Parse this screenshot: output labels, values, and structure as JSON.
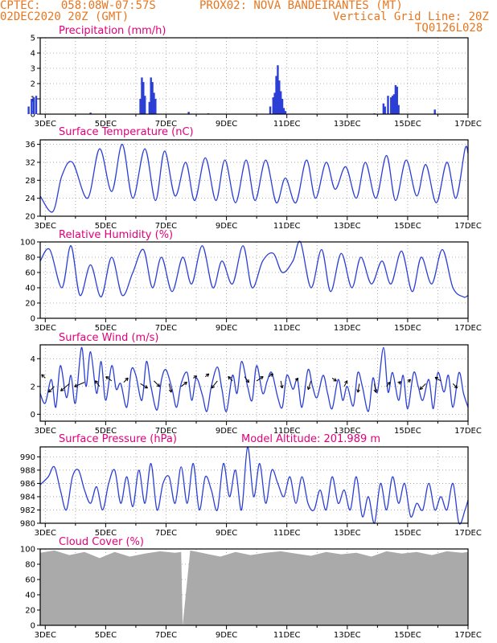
{
  "header": {
    "line1_left": "CPTEC:   058:08W-07:57S",
    "line1_right": "PROX02: NOVA BANDEIRANTES (MT)",
    "line2_left": "02DEC2020 20Z (GMT)",
    "line2_right": "Vertical Grid Line: 20Z",
    "line3_right": "TQ0126L028"
  },
  "colors": {
    "series": "#2b3fd6",
    "title": "#e0007a",
    "header": "#e8761e",
    "cloud": "#aaaaaa"
  },
  "x_axis": {
    "ticks": [
      "3DEC",
      "5DEC",
      "7DEC",
      "9DEC",
      "11DEC",
      "13DEC",
      "15DEC",
      "17DEC"
    ],
    "range_days": [
      2.833,
      17.0
    ]
  },
  "chart_data": [
    {
      "type": "bar",
      "title": "Precipitation (mm/h)",
      "ylim": [
        0,
        5
      ],
      "yticks": [
        "0",
        "1",
        "2",
        "3",
        "4",
        "5"
      ],
      "x": [
        2.45,
        2.55,
        2.62,
        2.7,
        4.5,
        6.15,
        6.2,
        6.25,
        6.3,
        6.45,
        6.5,
        6.55,
        6.6,
        6.65,
        7.75,
        8.4,
        10.45,
        10.55,
        10.6,
        10.65,
        10.7,
        10.75,
        10.8,
        10.85,
        10.9,
        10.95,
        13.9,
        14.2,
        14.25,
        14.35,
        14.45,
        14.5,
        14.55,
        14.6,
        14.65,
        14.7,
        15.9
      ],
      "values": [
        0.5,
        1.0,
        1.1,
        1.2,
        0.1,
        1.0,
        2.4,
        2.1,
        1.2,
        0.8,
        2.4,
        2.1,
        1.4,
        1.0,
        0.15,
        0.05,
        0.5,
        1.1,
        1.4,
        2.5,
        3.2,
        2.2,
        1.5,
        1.0,
        0.4,
        0.2,
        0.05,
        0.7,
        0.5,
        1.2,
        1.1,
        1.2,
        1.3,
        1.9,
        1.8,
        0.6,
        0.3
      ]
    },
    {
      "type": "line",
      "title": "Surface Temperature (nC)",
      "ylim": [
        20,
        37
      ],
      "yticks": [
        "20",
        "24",
        "28",
        "32",
        "36"
      ],
      "x": [
        2.833,
        3.25,
        3.55,
        3.9,
        4.4,
        4.8,
        5.2,
        5.55,
        5.9,
        6.3,
        6.65,
        6.95,
        7.3,
        7.65,
        7.95,
        8.3,
        8.65,
        8.95,
        9.3,
        9.65,
        9.95,
        10.3,
        10.65,
        10.95,
        11.3,
        11.65,
        11.95,
        12.3,
        12.6,
        12.95,
        13.3,
        13.6,
        13.95,
        14.3,
        14.6,
        14.95,
        15.3,
        15.6,
        15.95,
        16.3,
        16.6,
        16.9,
        17.0
      ],
      "values": [
        24.5,
        21,
        29,
        32,
        24,
        35,
        25.5,
        36,
        24,
        35,
        23.5,
        34.5,
        24.5,
        32,
        23.5,
        33,
        23.5,
        32.5,
        23,
        32.5,
        23.5,
        32.5,
        23,
        28.5,
        23,
        32.5,
        24,
        32,
        26,
        31,
        24,
        32,
        24,
        33.5,
        23.5,
        32.5,
        24.5,
        31.5,
        23,
        32,
        24,
        35,
        34
      ]
    },
    {
      "type": "line",
      "title": "Relative Humidity (%)",
      "ylim": [
        0,
        100
      ],
      "yticks": [
        "0",
        "20",
        "40",
        "60",
        "80",
        "100"
      ],
      "x": [
        2.833,
        3.15,
        3.55,
        3.85,
        4.15,
        4.5,
        4.85,
        5.2,
        5.55,
        5.9,
        6.25,
        6.55,
        6.85,
        7.2,
        7.55,
        7.85,
        8.2,
        8.55,
        8.85,
        9.2,
        9.55,
        9.85,
        10.2,
        10.55,
        10.85,
        11.2,
        11.45,
        11.8,
        12.15,
        12.45,
        12.8,
        13.15,
        13.45,
        13.8,
        14.15,
        14.45,
        14.8,
        15.15,
        15.45,
        15.8,
        16.15,
        16.5,
        16.85,
        17.0
      ],
      "values": [
        75,
        90,
        40,
        95,
        30,
        70,
        28,
        80,
        30,
        60,
        90,
        40,
        80,
        35,
        80,
        45,
        95,
        40,
        75,
        45,
        95,
        40,
        75,
        85,
        60,
        75,
        100,
        40,
        90,
        35,
        85,
        40,
        80,
        45,
        75,
        45,
        88,
        35,
        80,
        45,
        90,
        40,
        28,
        30
      ]
    },
    {
      "type": "line",
      "title": "Surface Wind (m/s)",
      "ylim": [
        -0.5,
        5
      ],
      "yticks": [
        "0",
        "2",
        "4"
      ],
      "x": [
        2.833,
        3.0,
        3.2,
        3.35,
        3.5,
        3.7,
        3.85,
        4.0,
        4.2,
        4.35,
        4.5,
        4.7,
        4.85,
        5.0,
        5.2,
        5.35,
        5.5,
        5.7,
        5.85,
        6.0,
        6.2,
        6.35,
        6.5,
        6.7,
        6.85,
        7.0,
        7.2,
        7.35,
        7.5,
        7.7,
        7.85,
        8.0,
        8.2,
        8.35,
        8.5,
        8.7,
        8.85,
        9.0,
        9.2,
        9.35,
        9.5,
        9.7,
        9.85,
        10.0,
        10.2,
        10.35,
        10.5,
        10.7,
        10.85,
        11.0,
        11.2,
        11.35,
        11.5,
        11.7,
        11.85,
        12.0,
        12.2,
        12.35,
        12.5,
        12.7,
        12.85,
        13.0,
        13.2,
        13.35,
        13.5,
        13.7,
        13.85,
        14.0,
        14.2,
        14.35,
        14.5,
        14.7,
        14.85,
        15.0,
        15.2,
        15.35,
        15.5,
        15.7,
        15.85,
        16.0,
        16.2,
        16.35,
        16.5,
        16.7,
        16.85,
        17.0
      ],
      "values": [
        1.5,
        0.8,
        2.5,
        0.5,
        3.5,
        1.2,
        2.8,
        0.8,
        4.8,
        2.0,
        4.5,
        1.5,
        3.8,
        1.0,
        3.5,
        1.8,
        2.2,
        0.5,
        3.2,
        2.8,
        1.0,
        3.8,
        2.0,
        0.3,
        2.5,
        3.2,
        1.8,
        0.5,
        2.2,
        3.0,
        1.0,
        2.6,
        1.4,
        0.2,
        2.0,
        3.4,
        1.8,
        0.2,
        2.8,
        1.5,
        3.8,
        2.0,
        1.0,
        3.5,
        1.5,
        2.4,
        3.0,
        1.2,
        0.5,
        2.8,
        1.8,
        2.5,
        0.5,
        3.2,
        2.0,
        1.2,
        2.8,
        1.5,
        0.4,
        2.5,
        1.0,
        2.0,
        0.6,
        3.0,
        2.0,
        0.2,
        2.6,
        1.6,
        4.8,
        1.6,
        3.0,
        1.0,
        2.8,
        0.4,
        3.0,
        2.0,
        1.0,
        2.5,
        0.4,
        3.0,
        1.6,
        2.8,
        0.5,
        3.0,
        1.5,
        0.5
      ],
      "vectors": [
        {
          "x": 3.0,
          "y": 2.6,
          "u": -0.5,
          "v": 0.5
        },
        {
          "x": 3.3,
          "y": 2.0,
          "u": -0.8,
          "v": -0.8
        },
        {
          "x": 3.8,
          "y": 2.2,
          "u": -1.2,
          "v": -1.0
        },
        {
          "x": 4.3,
          "y": 2.3,
          "u": -1.4,
          "v": -0.6
        },
        {
          "x": 4.8,
          "y": 2.0,
          "u": -0.6,
          "v": 0.8
        },
        {
          "x": 5.2,
          "y": 2.4,
          "u": -0.8,
          "v": 0.6
        },
        {
          "x": 5.6,
          "y": 2.3,
          "u": 0.6,
          "v": 0.6
        },
        {
          "x": 6.15,
          "y": 2.2,
          "u": 1.0,
          "v": -0.6
        },
        {
          "x": 6.6,
          "y": 2.4,
          "u": 0.8,
          "v": -0.8
        },
        {
          "x": 7.1,
          "y": 2.2,
          "u": 0.3,
          "v": -1.2
        },
        {
          "x": 7.5,
          "y": 2.0,
          "u": 0.8,
          "v": 0.6
        },
        {
          "x": 7.9,
          "y": 2.6,
          "u": 0.5,
          "v": 0.3
        },
        {
          "x": 8.3,
          "y": 2.7,
          "u": 0.5,
          "v": 0.4
        },
        {
          "x": 8.7,
          "y": 2.4,
          "u": -0.8,
          "v": -1.0
        },
        {
          "x": 9.2,
          "y": 2.4,
          "u": -0.6,
          "v": 0.6
        },
        {
          "x": 9.6,
          "y": 2.7,
          "u": 0.6,
          "v": -0.8
        },
        {
          "x": 10.0,
          "y": 2.4,
          "u": 0.9,
          "v": 0.6
        },
        {
          "x": 10.4,
          "y": 2.7,
          "u": 0.6,
          "v": 0.4
        },
        {
          "x": 10.8,
          "y": 2.4,
          "u": 0.2,
          "v": -1.0
        },
        {
          "x": 11.3,
          "y": 2.4,
          "u": 0.3,
          "v": 0.4
        },
        {
          "x": 11.8,
          "y": 2.4,
          "u": -0.4,
          "v": -1.2
        },
        {
          "x": 12.5,
          "y": 2.6,
          "u": 0.6,
          "v": -0.4
        },
        {
          "x": 12.9,
          "y": 2.0,
          "u": 0.4,
          "v": 0.8
        },
        {
          "x": 13.4,
          "y": 2.2,
          "u": -0.2,
          "v": -1.2
        },
        {
          "x": 13.9,
          "y": 2.2,
          "u": 0.2,
          "v": -1.2
        },
        {
          "x": 14.3,
          "y": 2.0,
          "u": 0.5,
          "v": 0.6
        },
        {
          "x": 14.7,
          "y": 2.2,
          "u": 0.3,
          "v": 0.3
        },
        {
          "x": 15.0,
          "y": 2.3,
          "u": 0.4,
          "v": 0.4
        },
        {
          "x": 15.6,
          "y": 2.2,
          "u": -0.8,
          "v": -0.8
        },
        {
          "x": 16.1,
          "y": 2.4,
          "u": -0.8,
          "v": 0.5
        },
        {
          "x": 16.5,
          "y": 2.2,
          "u": 0.6,
          "v": -0.6
        }
      ]
    },
    {
      "type": "line",
      "title": "Surface Pressure (hPa)",
      "annotation": "Model Altitude: 201.989 m",
      "ylim": [
        980,
        991.5
      ],
      "yticks": [
        "980",
        "982",
        "984",
        "986",
        "988",
        "990"
      ],
      "x": [
        2.833,
        3.1,
        3.3,
        3.5,
        3.7,
        3.9,
        4.1,
        4.3,
        4.5,
        4.7,
        4.9,
        5.1,
        5.3,
        5.5,
        5.7,
        5.9,
        6.1,
        6.3,
        6.5,
        6.7,
        6.9,
        7.1,
        7.3,
        7.5,
        7.7,
        7.9,
        8.1,
        8.3,
        8.5,
        8.7,
        8.9,
        9.1,
        9.3,
        9.5,
        9.7,
        9.9,
        10.1,
        10.3,
        10.5,
        10.7,
        10.9,
        11.1,
        11.3,
        11.5,
        11.7,
        11.9,
        12.1,
        12.3,
        12.5,
        12.7,
        12.9,
        13.1,
        13.3,
        13.5,
        13.7,
        13.9,
        14.1,
        14.3,
        14.5,
        14.7,
        14.9,
        15.1,
        15.3,
        15.5,
        15.7,
        15.9,
        16.1,
        16.3,
        16.5,
        16.7,
        16.9,
        17.0
      ],
      "values": [
        985.8,
        987,
        988.5,
        985,
        982,
        987,
        988,
        985,
        983,
        985.5,
        982,
        986,
        988,
        983,
        987,
        982.5,
        988,
        983,
        989,
        982,
        986,
        987,
        983,
        988.5,
        983,
        989,
        982,
        987,
        985,
        982,
        989,
        984,
        988,
        982,
        991.5,
        984,
        989,
        983,
        988,
        986,
        984,
        987,
        983,
        987,
        983,
        982,
        985,
        982,
        987,
        983,
        985,
        982,
        987,
        981,
        984,
        980,
        986,
        982,
        987,
        983,
        986,
        981,
        983,
        982,
        986,
        982,
        984,
        982,
        986,
        980,
        982,
        983.5
      ]
    },
    {
      "type": "area",
      "title": "Cloud Cover (%)",
      "ylim": [
        0,
        100
      ],
      "yticks": [
        "0",
        "20",
        "40",
        "60",
        "80",
        "100"
      ],
      "x": [
        2.833,
        3.3,
        3.8,
        4.3,
        4.8,
        5.3,
        5.8,
        6.3,
        6.8,
        7.3,
        7.5,
        7.55,
        7.8,
        8.3,
        8.8,
        9.3,
        9.8,
        10.3,
        10.8,
        11.3,
        11.8,
        12.3,
        12.8,
        13.3,
        13.8,
        14.3,
        14.8,
        15.3,
        15.8,
        16.3,
        16.8,
        17.0
      ],
      "values": [
        95,
        98,
        92,
        96,
        88,
        96,
        90,
        94,
        97,
        95,
        96,
        0,
        98,
        94,
        90,
        96,
        92,
        95,
        97,
        94,
        91,
        96,
        93,
        95,
        90,
        97,
        94,
        96,
        92,
        97,
        95,
        96
      ]
    }
  ]
}
